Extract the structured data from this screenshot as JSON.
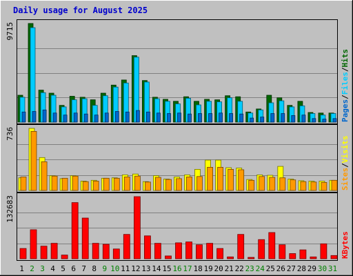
{
  "chart_data": {
    "type": "bar",
    "title": "Daily usage for August 2025",
    "categories": [
      "1",
      "2",
      "3",
      "4",
      "5",
      "6",
      "7",
      "8",
      "9",
      "10",
      "11",
      "12",
      "13",
      "14",
      "15",
      "16",
      "17",
      "18",
      "19",
      "20",
      "21",
      "22",
      "23",
      "24",
      "25",
      "26",
      "27",
      "28",
      "29",
      "30",
      "31"
    ],
    "weekend_days": [
      "2",
      "3",
      "9",
      "10",
      "16",
      "17",
      "23",
      "24",
      "30",
      "31"
    ],
    "panels": [
      {
        "id": "hits-files-pages",
        "ymax_label": "9715",
        "ylim": [
          0,
          9715
        ],
        "axis_labels": [
          "Pages",
          "Files",
          "Hits"
        ],
        "series": [
          {
            "name": "Hits",
            "color": "#006600",
            "values": [
              2650,
              9715,
              3150,
              2850,
              1650,
              2550,
              2450,
              2200,
              2850,
              3650,
              4150,
              6550,
              4100,
              2450,
              2250,
              2050,
              2500,
              2050,
              2250,
              2200,
              2600,
              2500,
              1000,
              1300,
              2650,
              2400,
              1650,
              2050,
              950,
              900,
              900
            ]
          },
          {
            "name": "Files",
            "color": "#00ccff",
            "values": [
              2450,
              9300,
              2900,
              2650,
              1500,
              2200,
              2300,
              1650,
              2600,
              3450,
              3850,
              6400,
              3950,
              2300,
              2050,
              1800,
              2350,
              1700,
              2050,
              2000,
              2400,
              2050,
              900,
              1200,
              1900,
              2100,
              1500,
              1600,
              850,
              700,
              850
            ]
          },
          {
            "name": "Pages",
            "color": "#0066cc",
            "values": [
              1000,
              1050,
              1200,
              900,
              700,
              900,
              800,
              700,
              900,
              1050,
              1000,
              1150,
              1000,
              900,
              850,
              900,
              800,
              850,
              850,
              900,
              850,
              800,
              400,
              500,
              850,
              850,
              650,
              700,
              350,
              300,
              350
            ]
          }
        ]
      },
      {
        "id": "visits-sites",
        "ymax_label": "736",
        "ylim": [
          0,
          736
        ],
        "axis_labels": [
          "Sites",
          "Visits"
        ],
        "series": [
          {
            "name": "Visits",
            "color": "#ffff00",
            "values": [
              150,
              736,
              390,
              175,
              140,
              175,
              110,
              120,
              145,
              150,
              185,
              195,
              105,
              175,
              135,
              160,
              185,
              250,
              360,
              360,
              270,
              266,
              130,
              185,
              180,
              285,
              135,
              115,
              110,
              110,
              120
            ]
          },
          {
            "name": "Sites",
            "color": "#ff9900",
            "values": [
              160,
              700,
              340,
              170,
              145,
              170,
              105,
              110,
              145,
              145,
              160,
              170,
              100,
              155,
              130,
              140,
              160,
              165,
              275,
              275,
              250,
              245,
              120,
              165,
              155,
              150,
              125,
              105,
              100,
              95,
              120
            ]
          }
        ]
      },
      {
        "id": "kbytes",
        "ymax_label": "132683",
        "ylim": [
          0,
          132683
        ],
        "axis_labels": [
          "KBytes"
        ],
        "series": [
          {
            "name": "KBytes",
            "color": "#ff0000",
            "values": [
              22000,
              62000,
              27000,
              33000,
              8000,
              120000,
              87000,
              33000,
              31000,
              21000,
              52000,
              132683,
              49000,
              33000,
              6000,
              34000,
              36000,
              30000,
              33000,
              22000,
              4000,
              52000,
              3000,
              41000,
              56000,
              30000,
              11000,
              19000,
              4000,
              32000,
              7000
            ]
          }
        ]
      }
    ]
  }
}
